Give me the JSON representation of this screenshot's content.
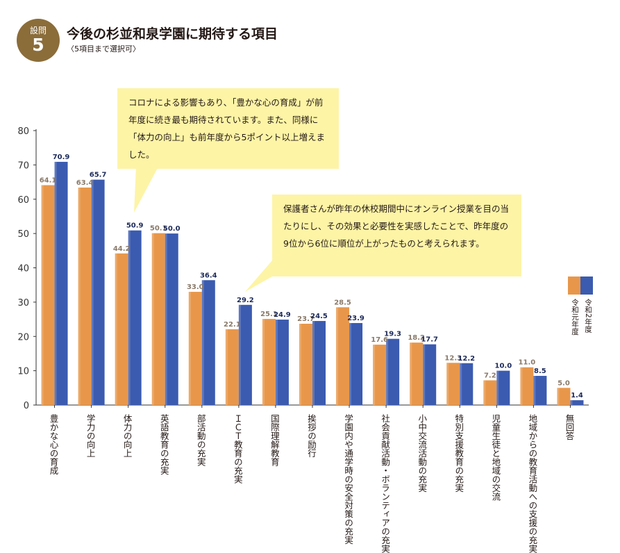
{
  "header": {
    "badge_top": "設問",
    "badge_num": "5",
    "title": "今後の杉並和泉学園に期待する項目",
    "subtitle": "〈5項目まで選択可〉"
  },
  "callouts": [
    "コロナによる影響もあり、「豊かな心の育成」が前年度に続き最も期待されています。また、同様に「体力の向上」も前年度から5ポイント以上増えました。",
    "保護者さんが昨年の休校期間中にオンライン授業を目の当たりにし、その効果と必要性を実感したことで、昨年度の9位から6位に順位が上がったものと考えられます。"
  ],
  "chart_data": {
    "type": "bar",
    "title": "今後の杉並和泉学園に期待する項目",
    "xlabel": "",
    "ylabel": "",
    "ylim": [
      0,
      80
    ],
    "yticks": [
      0,
      10,
      20,
      30,
      40,
      50,
      60,
      70,
      80
    ],
    "categories": [
      "豊かな心の育成",
      "学力の向上",
      "体力の向上",
      "英語教育の充実",
      "部活動の充実",
      "ＩＣＴ教育の充実",
      "国際理解教育",
      "挨拶の励行",
      "学園内や通学時の安全対策の充実",
      "社会貢献活動・ボランティアの充実",
      "小中交流活動の充実",
      "特別支援教育の充実",
      "児童生徒と地域の交流",
      "地域からの教育活動への支援の充実",
      "無回答"
    ],
    "series": [
      {
        "name": "令和元年度",
        "color": "#e8974a",
        "values": [
          64.1,
          63.4,
          44.2,
          50.1,
          33.0,
          22.1,
          25.1,
          23.7,
          28.5,
          17.6,
          18.2,
          12.3,
          7.2,
          11.0,
          5.0
        ],
        "labels": [
          "64.1",
          "63.4",
          "44.2",
          "50.1",
          "33.0",
          "22.1",
          "25.1",
          "23.7",
          "28.5",
          "17.6",
          "18.2",
          "12.3",
          "7.2",
          "11.0",
          "5.0"
        ]
      },
      {
        "name": "令和2年度",
        "color": "#3b5bb0",
        "values": [
          70.9,
          65.7,
          50.9,
          50.0,
          36.4,
          29.2,
          24.9,
          24.5,
          23.9,
          19.3,
          17.7,
          12.2,
          10.0,
          8.5,
          1.4
        ],
        "labels": [
          "70.9",
          "65.7",
          "50.9",
          "50.0",
          "36.4",
          "29.2",
          "24.9",
          "24.5",
          "23.9",
          "19.3",
          "17.7",
          "12.2",
          "10.0",
          "8.5",
          "1.4"
        ]
      }
    ],
    "legend_position": "right"
  }
}
